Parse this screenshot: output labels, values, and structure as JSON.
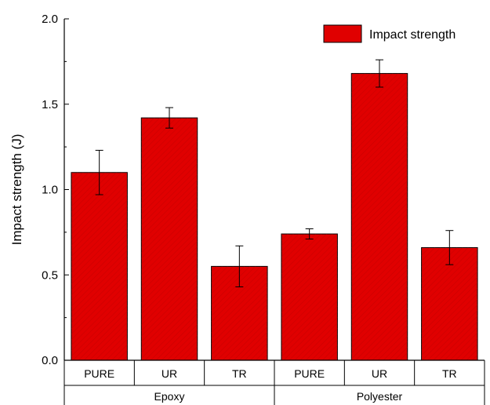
{
  "chart_data": {
    "type": "bar",
    "ylabel": "Impact strength (J)",
    "xlabel": "",
    "ylim": [
      0.0,
      2.0
    ],
    "yticks": [
      "0.0",
      "0.5",
      "1.0",
      "1.5",
      "2.0"
    ],
    "bar_color": "#e00000",
    "legend": {
      "label": "Impact strength",
      "position": "top-right"
    },
    "groups": [
      {
        "name": "Epoxy",
        "categories": [
          "PURE",
          "UR",
          "TR"
        ]
      },
      {
        "name": "Polyester",
        "categories": [
          "PURE",
          "UR",
          "TR"
        ]
      }
    ],
    "series": [
      {
        "name": "Impact strength",
        "values": [
          1.1,
          1.42,
          0.55,
          0.74,
          1.68,
          0.66
        ],
        "errors": [
          0.13,
          0.06,
          0.12,
          0.03,
          0.08,
          0.1
        ]
      }
    ]
  }
}
